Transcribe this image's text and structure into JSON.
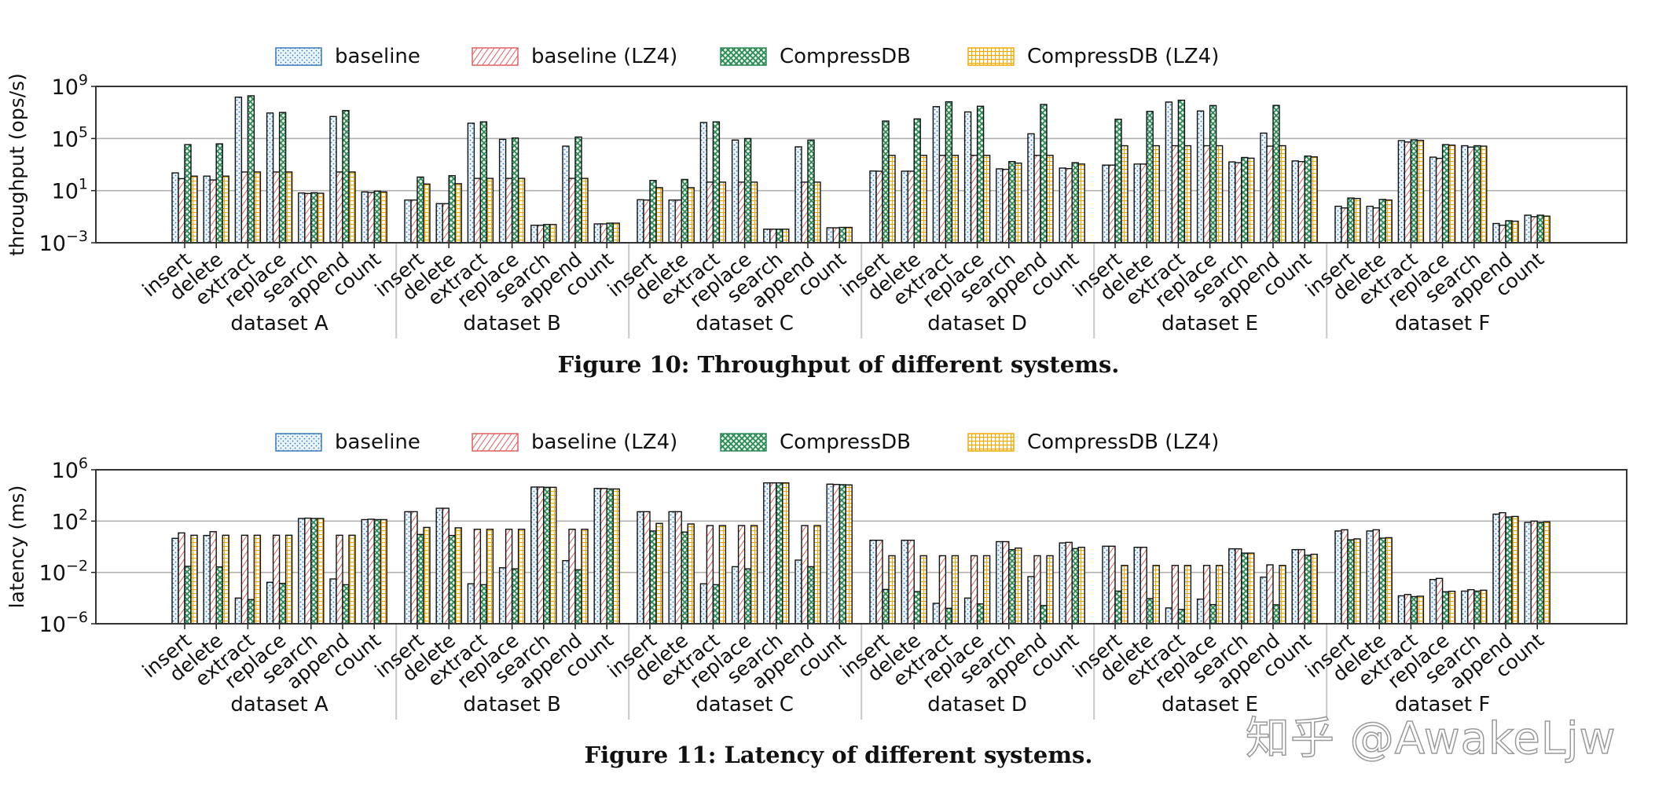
{
  "figures": [
    {
      "caption": "Figure 10: Throughput of different systems."
    },
    {
      "caption": "Figure 11: Latency of different systems."
    }
  ],
  "watermark": "知乎 @AwakeLjw",
  "chart_data": [
    {
      "type": "bar",
      "ylabel": "throughput (ops/s)",
      "yscale": "log",
      "ylim": [
        0.001,
        1000000000
      ],
      "yticks": [
        0.001,
        10,
        100000,
        1000000000
      ],
      "ytick_labels": [
        {
          "base": "10",
          "exp": "−3"
        },
        {
          "base": "10",
          "exp": "1"
        },
        {
          "base": "10",
          "exp": "5"
        },
        {
          "base": "10",
          "exp": "9"
        }
      ],
      "grid": "horizontal",
      "legend": "top",
      "groups": [
        "dataset A",
        "dataset B",
        "dataset C",
        "dataset D",
        "dataset E",
        "dataset F"
      ],
      "categories": [
        "insert",
        "delete",
        "extract",
        "replace",
        "search",
        "append",
        "count"
      ],
      "series": [
        {
          "name": "baseline",
          "color": "#3a7ab8",
          "pattern": "dots",
          "values": [
            [
              230,
              130,
              150000000.0,
              9100000.0,
              6.6,
              4900000.0,
              7.9
            ],
            [
              1.9,
              1.0,
              1500000.0,
              87000.0,
              0.022,
              26000.0,
              0.028
            ],
            [
              2.0,
              1.9,
              1700000.0,
              76000.0,
              0.011,
              23000.0,
              0.014
            ],
            [
              320,
              310,
              28000000.0,
              11000000.0,
              470,
              230000.0,
              540
            ],
            [
              910,
              1100,
              63000000.0,
              13000000.0,
              1600,
              260000.0,
              1900
            ],
            [
              0.63,
              0.63,
              69000.0,
              3700,
              28000.0,
              0.03,
              0.13
            ]
          ]
        },
        {
          "name": "baseline (LZ4)",
          "color": "#e06060",
          "pattern": "diagonal",
          "values": [
            [
              83,
              66,
              270,
              270,
              6.0,
              270,
              7.2
            ],
            [
              1.9,
              1.0,
              87,
              87,
              0.022,
              87,
              0.028
            ],
            [
              1.9,
              1.9,
              45,
              45,
              0.011,
              45,
              0.014
            ],
            [
              310,
              310,
              5100,
              5100,
              430,
              5100,
              490
            ],
            [
              910,
              1100,
              28000.0,
              28000.0,
              1400,
              26000.0,
              1700
            ],
            [
              0.47,
              0.47,
              54000.0,
              3000,
              22000.0,
              0.022,
              0.1
            ]
          ]
        },
        {
          "name": "CompressDB",
          "color": "#2e8b57",
          "pattern": "crosshatch",
          "values": [
            [
              34000.0,
              39000.0,
              190000000.0,
              10000000.0,
              6.9,
              14000000.0,
              9.1
            ],
            [
              110,
              140,
              1900000.0,
              110000.0,
              0.025,
              130000.0,
              0.032
            ],
            [
              60,
              72,
              1900000.0,
              100000.0,
              0.011,
              76000.0,
              0.015
            ],
            [
              2200000.0,
              3200000.0,
              66000000.0,
              30000000.0,
              1700,
              41000000.0,
              1400
            ],
            [
              3000000.0,
              12000000.0,
              87000000.0,
              34000000.0,
              3500,
              35000000.0,
              4500
            ],
            [
              2.7,
              2.1,
              79000.0,
              34000.0,
              28000.0,
              0.049,
              0.13
            ]
          ]
        },
        {
          "name": "CompressDB (LZ4)",
          "color": "#f2a900",
          "pattern": "grid",
          "values": [
            [
              130,
              130,
              270,
              270,
              6.3,
              270,
              7.9
            ],
            [
              32,
              34,
              87,
              87,
              0.025,
              87,
              0.032
            ],
            [
              17,
              17,
              45,
              45,
              0.011,
              45,
              0.015
            ],
            [
              5100,
              5100,
              5100,
              5100,
              1300,
              5100,
              1100
            ],
            [
              28000.0,
              28000.0,
              28000.0,
              28000.0,
              3100,
              28000.0,
              3900
            ],
            [
              2.5,
              1.9,
              72000.0,
              31000.0,
              26000.0,
              0.045,
              0.11
            ]
          ]
        }
      ]
    },
    {
      "type": "bar",
      "ylabel": "latency (ms)",
      "yscale": "log",
      "ylim": [
        1e-06,
        1000000
      ],
      "yticks": [
        1e-06,
        0.01,
        100,
        1000000
      ],
      "ytick_labels": [
        {
          "base": "10",
          "exp": "−6"
        },
        {
          "base": "10",
          "exp": "−2"
        },
        {
          "base": "10",
          "exp": "2"
        },
        {
          "base": "10",
          "exp": "6"
        }
      ],
      "grid": "horizontal",
      "legend": "top",
      "groups": [
        "dataset A",
        "dataset B",
        "dataset C",
        "dataset D",
        "dataset E",
        "dataset F"
      ],
      "categories": [
        "insert",
        "delete",
        "extract",
        "replace",
        "search",
        "append",
        "count"
      ],
      "series": [
        {
          "name": "baseline",
          "color": "#3a7ab8",
          "pattern": "dots",
          "values": [
            [
              4.5,
              7.6,
              0.0001,
              0.0017,
              160,
              0.0031,
              130
            ],
            [
              540,
              1000,
              0.0013,
              0.023,
              45000.0,
              0.083,
              35000.0
            ],
            [
              540,
              540,
              0.0013,
              0.028,
              95000.0,
              0.091,
              76000.0
            ],
            [
              3.2,
              3.2,
              3.9e-05,
              0.0001,
              2.5,
              0.0047,
              2.0
            ],
            [
              1.1,
              0.91,
              1.7e-05,
              8.3e-05,
              0.69,
              0.0043,
              0.6
            ],
            [
              17,
              17,
              0.00015,
              0.0028,
              0.00035,
              350,
              79
            ]
          ]
        },
        {
          "name": "baseline (LZ4)",
          "color": "#e06060",
          "pattern": "diagonal",
          "values": [
            [
              12,
              15,
              7.9,
              7.9,
              170,
              7.9,
              140
            ],
            [
              540,
              1000,
              23,
              23,
              45000.0,
              23,
              35000.0
            ],
            [
              540,
              540,
              45,
              45,
              95000.0,
              45,
              72000.0
            ],
            [
              3.2,
              3.2,
              0.2,
              0.2,
              2.5,
              0.2,
              2.2
            ],
            [
              1.1,
              0.91,
              0.035,
              0.035,
              0.69,
              0.039,
              0.6
            ],
            [
              21,
              21,
              0.00019,
              0.0034,
              0.00045,
              450,
              100
            ]
          ]
        },
        {
          "name": "CompressDB",
          "color": "#2e8b57",
          "pattern": "crosshatch",
          "values": [
            [
              0.03,
              0.027,
              7.6e-05,
              0.0014,
              160,
              0.0011,
              130
            ],
            [
              9.1,
              7.6,
              0.0011,
              0.019,
              43000.0,
              0.016,
              32000.0
            ],
            [
              17,
              14,
              0.0011,
              0.019,
              95000.0,
              0.028,
              69000.0
            ],
            [
              0.00047,
              0.00032,
              1.6e-05,
              3.5e-05,
              0.6,
              2.6e-05,
              0.72
            ],
            [
              0.00035,
              9.1e-05,
              1.3e-05,
              3.1e-05,
              0.32,
              3e-05,
              0.22
            ],
            [
              3.5,
              4.7,
              0.00013,
              0.00031,
              0.00035,
              210,
              79
            ]
          ]
        },
        {
          "name": "CompressDB (LZ4)",
          "color": "#f2a900",
          "pattern": "grid",
          "values": [
            [
              7.9,
              7.9,
              7.9,
              7.9,
              160,
              7.9,
              130
            ],
            [
              32,
              30,
              23,
              23,
              43000.0,
              23,
              32000.0
            ],
            [
              66,
              60,
              45,
              45,
              95000.0,
              45,
              66000.0
            ],
            [
              0.2,
              0.2,
              0.2,
              0.2,
              0.79,
              0.2,
              0.91
            ],
            [
              0.035,
              0.035,
              0.035,
              0.035,
              0.32,
              0.035,
              0.26
            ],
            [
              4.1,
              5.1,
              0.00014,
              0.00034,
              0.00041,
              230,
              87
            ]
          ]
        }
      ]
    }
  ]
}
